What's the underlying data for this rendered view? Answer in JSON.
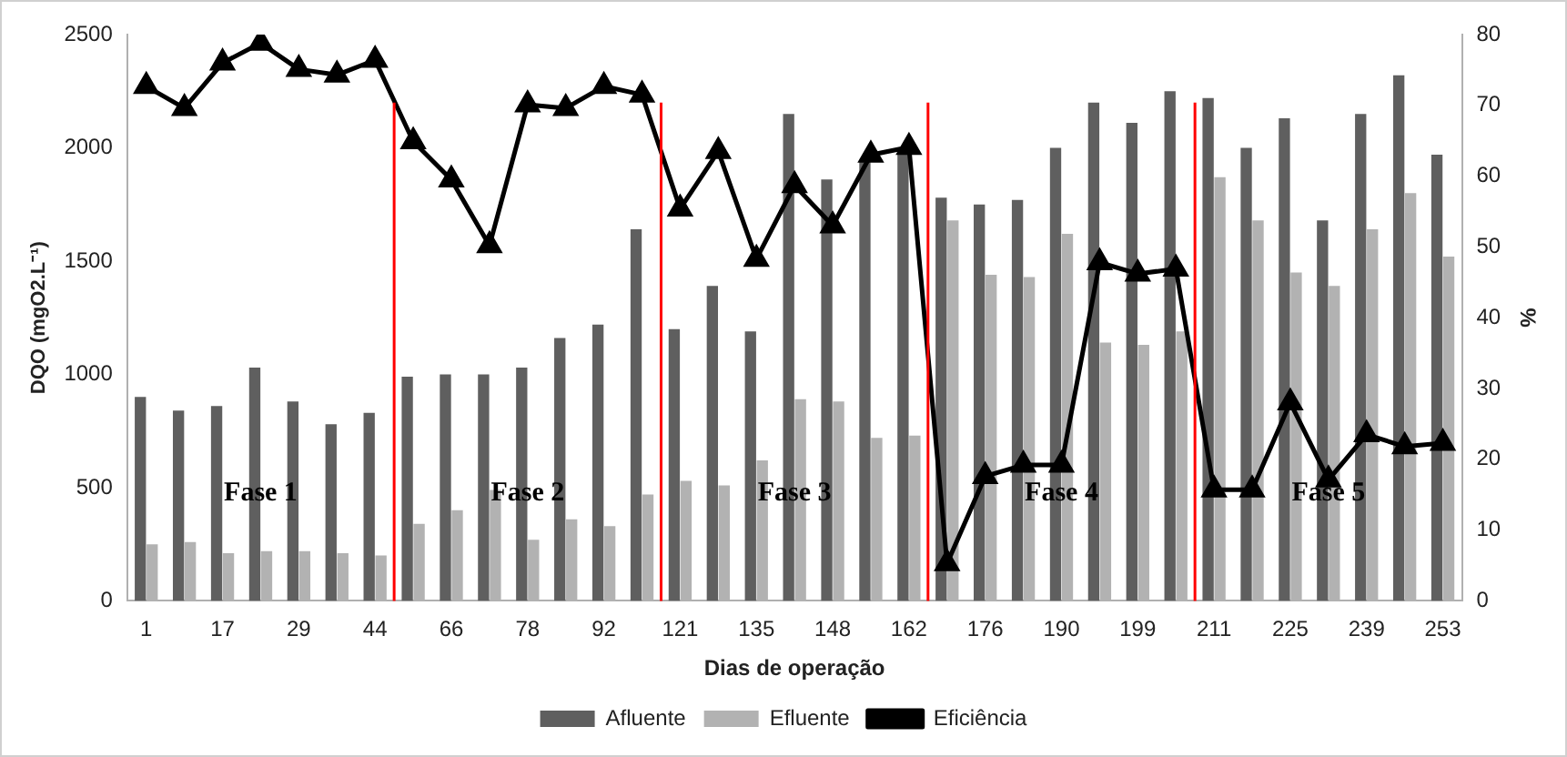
{
  "chart_data": {
    "type": "bar",
    "xlabel": "Dias de operação",
    "ylabel": "DQO (mgO2.L⁻¹)",
    "y2label": "%",
    "categories": [
      "1",
      null,
      "17",
      null,
      "29",
      null,
      "44",
      null,
      "66",
      null,
      "78",
      null,
      "92",
      null,
      "121",
      null,
      "135",
      null,
      "148",
      null,
      "162",
      null,
      "176",
      null,
      "190",
      null,
      "199",
      null,
      "211",
      null,
      "225",
      null,
      "239",
      null,
      "253"
    ],
    "series": [
      {
        "name": "Afluente",
        "color": "#5f5f5f",
        "values": [
          900,
          840,
          860,
          1030,
          880,
          780,
          830,
          990,
          1000,
          1000,
          1030,
          1160,
          1220,
          1640,
          1200,
          1390,
          1190,
          2150,
          1860,
          1940,
          1990,
          1780,
          1750,
          1770,
          2000,
          2200,
          2110,
          2250,
          2220,
          2000,
          2130,
          1680,
          2150,
          2320,
          1970
        ]
      },
      {
        "name": "Efluente",
        "color": "#b2b2b2",
        "values": [
          250,
          260,
          210,
          220,
          220,
          210,
          200,
          340,
          400,
          490,
          270,
          360,
          330,
          470,
          530,
          510,
          620,
          890,
          880,
          720,
          730,
          1680,
          1440,
          1430,
          1620,
          1140,
          1130,
          1190,
          1870,
          1680,
          1450,
          1390,
          1640,
          1800,
          1520
        ]
      },
      {
        "name": "Eficiência",
        "type": "line",
        "axis": "y2",
        "color": "#000000",
        "marker": "triangle",
        "values": [
          72.7,
          69.6,
          76,
          78.8,
          75.1,
          74.3,
          76.4,
          64.9,
          59.5,
          50.2,
          70.1,
          69.6,
          72.7,
          71.5,
          55.4,
          63.5,
          48.3,
          58.7,
          53,
          63,
          64.1,
          5.3,
          17.6,
          19.2,
          19.2,
          47.8,
          46.2,
          46.9,
          15.7,
          15.7,
          28,
          17.1,
          23.5,
          21.8,
          22.3
        ]
      }
    ],
    "ylim": [
      0,
      2500
    ],
    "yticks": [
      0,
      500,
      1000,
      1500,
      2000,
      2500
    ],
    "y2lim": [
      0,
      80
    ],
    "y2ticks": [
      0,
      10,
      20,
      30,
      40,
      50,
      60,
      70,
      80
    ],
    "annotations": [
      "Fase 1",
      "Fase 2",
      "Fase 3",
      "Fase 4",
      "Fase 5"
    ],
    "grid": false,
    "legend": "bottom"
  }
}
